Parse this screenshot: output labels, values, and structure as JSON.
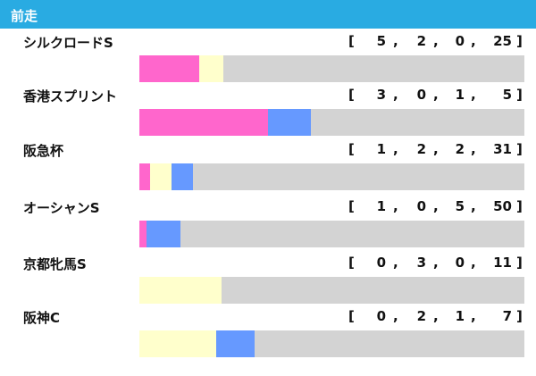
{
  "header": {
    "title": "前走"
  },
  "colors": {
    "first": "#ff66cc",
    "second": "#ffffcc",
    "third": "#6699ff",
    "other": "#d3d3d3",
    "header_bg": "#29abe2"
  },
  "chart_data": {
    "type": "bar",
    "stacked": true,
    "orientation": "horizontal",
    "normalized": true,
    "categories": [
      "シルクロードS",
      "香港スプリント",
      "阪急杯",
      "オーシャンS",
      "京都牝馬S",
      "阪神C"
    ],
    "series": [
      {
        "values": [
          5,
          3,
          1,
          1,
          0,
          0
        ],
        "color": "#ff66cc"
      },
      {
        "values": [
          2,
          0,
          2,
          0,
          3,
          2
        ],
        "color": "#ffffcc"
      },
      {
        "values": [
          0,
          1,
          2,
          5,
          0,
          1
        ],
        "color": "#6699ff"
      },
      {
        "values": [
          25,
          5,
          31,
          50,
          11,
          7
        ],
        "color": "#d3d3d3"
      }
    ],
    "grid": false,
    "legend": "none"
  },
  "rows": [
    {
      "name": "シルクロードS",
      "record": [
        "5",
        "2",
        "0",
        "25"
      ]
    },
    {
      "name": "香港スプリント",
      "record": [
        "3",
        "0",
        "1",
        "5"
      ]
    },
    {
      "name": "阪急杯",
      "record": [
        "1",
        "2",
        "2",
        "31"
      ]
    },
    {
      "name": "オーシャンS",
      "record": [
        "1",
        "0",
        "5",
        "50"
      ]
    },
    {
      "name": "京都牝馬S",
      "record": [
        "0",
        "3",
        "0",
        "11"
      ]
    },
    {
      "name": "阪神C",
      "record": [
        "0",
        "2",
        "1",
        "7"
      ]
    }
  ],
  "record_format": {
    "open": "[",
    "sep": ",",
    "close": "]"
  }
}
